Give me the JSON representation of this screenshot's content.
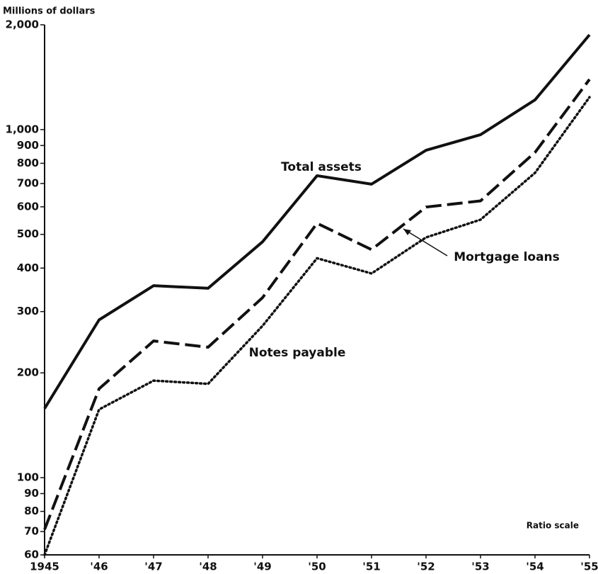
{
  "chart_data": {
    "type": "line",
    "y_label": "Millions of dollars",
    "note": "Ratio scale",
    "categories": [
      "1945",
      "'46",
      "'47",
      "'48",
      "'49",
      "'50",
      "'51",
      "'52",
      "'53",
      "'54",
      "'55"
    ],
    "series": [
      {
        "name": "Total assets",
        "color": "#111111",
        "style": "solid",
        "values": [
          158,
          284,
          356,
          350,
          476,
          737,
          697,
          872,
          967,
          1217,
          1872
        ]
      },
      {
        "name": "Mortgage loans",
        "color": "#111111",
        "style": "dashed",
        "values": [
          71,
          180,
          247,
          237,
          329,
          538,
          452,
          599,
          624,
          860,
          1394
        ]
      },
      {
        "name": "Notes payable",
        "color": "#111111",
        "style": "dotted",
        "values": [
          60,
          157,
          190,
          186,
          273,
          427,
          386,
          490,
          551,
          751,
          1239
        ]
      }
    ],
    "log_scale": true,
    "ylim": [
      60,
      2000
    ],
    "yticks": [
      60,
      70,
      80,
      90,
      100,
      200,
      300,
      400,
      500,
      600,
      700,
      800,
      900,
      {
        "value": 1000,
        "label": "1,000"
      },
      {
        "value": 2000,
        "label": "2,000"
      }
    ]
  }
}
